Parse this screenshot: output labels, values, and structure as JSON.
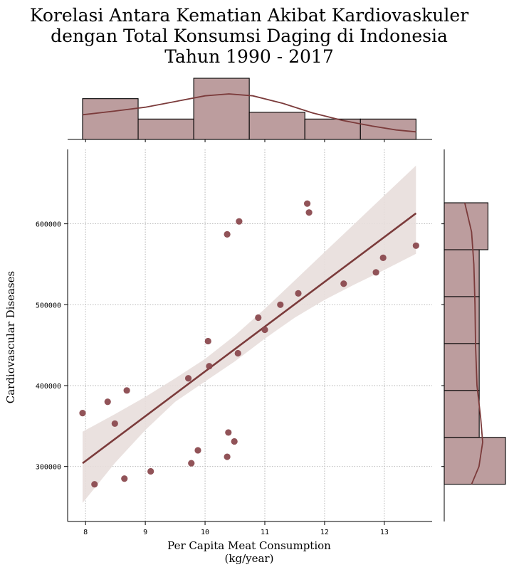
{
  "chart_data": {
    "type": "scatter",
    "title_lines": [
      "Korelasi Antara Kematian Akibat Kardiovaskuler",
      "dengan Total Konsumsi Daging di Indonesia",
      "Tahun 1990 - 2017"
    ],
    "xlabel_lines": [
      "Per Capita Meat Consumption",
      "(kg/year)"
    ],
    "ylabel": "Cardiovascular Diseases",
    "xlim": [
      7.7,
      13.8
    ],
    "ylim": [
      232000,
      692000
    ],
    "x_ticks": [
      8,
      9,
      10,
      11,
      12,
      13
    ],
    "y_ticks": [
      300000,
      400000,
      500000,
      600000
    ],
    "grid": true,
    "colors": {
      "points": "#8b4a4f",
      "line": "#7b3b3b",
      "band": "#e8dedc",
      "hist_fill": "#bc9d9e",
      "hist_edge": "#000000",
      "grid": "#b0b0b0"
    },
    "points": [
      {
        "x": 7.95,
        "y": 366000
      },
      {
        "x": 8.15,
        "y": 278000
      },
      {
        "x": 8.37,
        "y": 380000
      },
      {
        "x": 8.49,
        "y": 353000
      },
      {
        "x": 8.65,
        "y": 285000
      },
      {
        "x": 8.69,
        "y": 394000
      },
      {
        "x": 9.09,
        "y": 294000
      },
      {
        "x": 9.72,
        "y": 409000
      },
      {
        "x": 9.77,
        "y": 304000
      },
      {
        "x": 9.88,
        "y": 320000
      },
      {
        "x": 10.05,
        "y": 455000
      },
      {
        "x": 10.07,
        "y": 424000
      },
      {
        "x": 10.37,
        "y": 587000
      },
      {
        "x": 10.37,
        "y": 312000
      },
      {
        "x": 10.39,
        "y": 342000
      },
      {
        "x": 10.49,
        "y": 331000
      },
      {
        "x": 10.55,
        "y": 440000
      },
      {
        "x": 10.57,
        "y": 603000
      },
      {
        "x": 10.89,
        "y": 484000
      },
      {
        "x": 11.0,
        "y": 469000
      },
      {
        "x": 11.26,
        "y": 500000
      },
      {
        "x": 11.56,
        "y": 514000
      },
      {
        "x": 11.71,
        "y": 625000
      },
      {
        "x": 11.74,
        "y": 614000
      },
      {
        "x": 12.32,
        "y": 526000
      },
      {
        "x": 12.86,
        "y": 540000
      },
      {
        "x": 12.98,
        "y": 558000
      },
      {
        "x": 13.53,
        "y": 573000
      }
    ],
    "regression": {
      "x_range": [
        7.95,
        13.53
      ],
      "y_start": 304000,
      "y_end": 613000,
      "ci_lower": [
        {
          "x": 7.95,
          "y": 255000
        },
        {
          "x": 8.5,
          "y": 305000
        },
        {
          "x": 9.0,
          "y": 345000
        },
        {
          "x": 9.5,
          "y": 380000
        },
        {
          "x": 10.0,
          "y": 405000
        },
        {
          "x": 10.5,
          "y": 430000
        },
        {
          "x": 11.0,
          "y": 458000
        },
        {
          "x": 11.5,
          "y": 484000
        },
        {
          "x": 12.0,
          "y": 506000
        },
        {
          "x": 12.5,
          "y": 525000
        },
        {
          "x": 13.0,
          "y": 543000
        },
        {
          "x": 13.53,
          "y": 563000
        }
      ],
      "ci_upper": [
        {
          "x": 7.95,
          "y": 343000
        },
        {
          "x": 8.5,
          "y": 365000
        },
        {
          "x": 9.0,
          "y": 386000
        },
        {
          "x": 9.5,
          "y": 409000
        },
        {
          "x": 10.0,
          "y": 433000
        },
        {
          "x": 10.5,
          "y": 462000
        },
        {
          "x": 11.0,
          "y": 495000
        },
        {
          "x": 11.5,
          "y": 530000
        },
        {
          "x": 12.0,
          "y": 565000
        },
        {
          "x": 12.5,
          "y": 600000
        },
        {
          "x": 13.0,
          "y": 635000
        },
        {
          "x": 13.53,
          "y": 672000
        }
      ]
    },
    "x_histogram": {
      "bins": [
        [
          7.95,
          8.88
        ],
        [
          8.88,
          9.81
        ],
        [
          9.81,
          10.74
        ],
        [
          10.74,
          11.67
        ],
        [
          11.67,
          12.6
        ],
        [
          12.6,
          13.53
        ]
      ],
      "counts": [
        6,
        3,
        9,
        4,
        3,
        3
      ],
      "kde": [
        {
          "x": 7.95,
          "d": 0.13
        },
        {
          "x": 8.5,
          "d": 0.15
        },
        {
          "x": 9.0,
          "d": 0.17
        },
        {
          "x": 9.5,
          "d": 0.2
        },
        {
          "x": 10.0,
          "d": 0.23
        },
        {
          "x": 10.4,
          "d": 0.24
        },
        {
          "x": 10.8,
          "d": 0.23
        },
        {
          "x": 11.3,
          "d": 0.19
        },
        {
          "x": 11.8,
          "d": 0.14
        },
        {
          "x": 12.3,
          "d": 0.1
        },
        {
          "x": 12.8,
          "d": 0.07
        },
        {
          "x": 13.2,
          "d": 0.05
        },
        {
          "x": 13.53,
          "d": 0.04
        }
      ]
    },
    "y_histogram": {
      "bins": [
        [
          278000,
          336000
        ],
        [
          336000,
          394000
        ],
        [
          394000,
          452000
        ],
        [
          452000,
          510000
        ],
        [
          510000,
          568000
        ],
        [
          568000,
          626000
        ]
      ],
      "counts": [
        7,
        4,
        4,
        4,
        4,
        5
      ],
      "kde": [
        {
          "y": 278000,
          "d": 0.96
        },
        {
          "y": 300000,
          "d": 1.22
        },
        {
          "y": 330000,
          "d": 1.35
        },
        {
          "y": 360000,
          "d": 1.28
        },
        {
          "y": 400000,
          "d": 1.15
        },
        {
          "y": 450000,
          "d": 1.1
        },
        {
          "y": 500000,
          "d": 1.08
        },
        {
          "y": 550000,
          "d": 1.04
        },
        {
          "y": 590000,
          "d": 0.96
        },
        {
          "y": 626000,
          "d": 0.72
        }
      ]
    }
  }
}
